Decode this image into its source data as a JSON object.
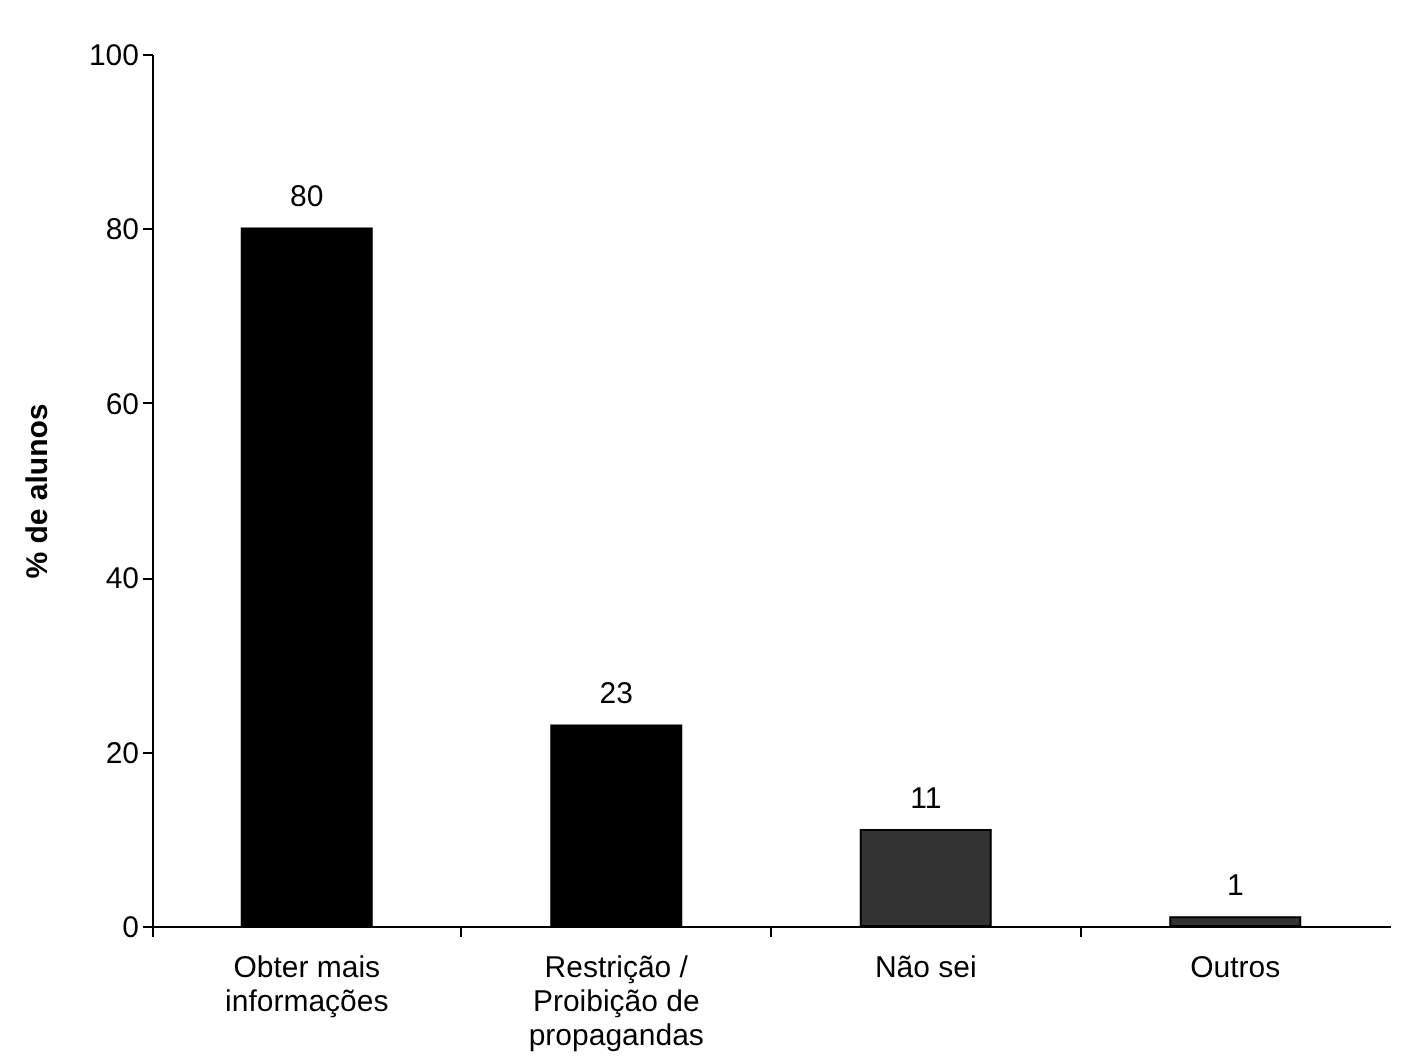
{
  "chart_data": {
    "type": "bar",
    "ylabel": "% de alunos",
    "categories": [
      "Obter mais informações",
      "Restrição / Proibição de propagandas",
      "Não sei",
      "Outros"
    ],
    "values": [
      80,
      23,
      11,
      1
    ],
    "colors": [
      "#000000",
      "#000000",
      "#333333",
      "#333333"
    ],
    "ylim": [
      0,
      100
    ],
    "yticks": [
      0,
      20,
      40,
      60,
      80,
      100
    ],
    "grid": false,
    "data_labels": true
  }
}
